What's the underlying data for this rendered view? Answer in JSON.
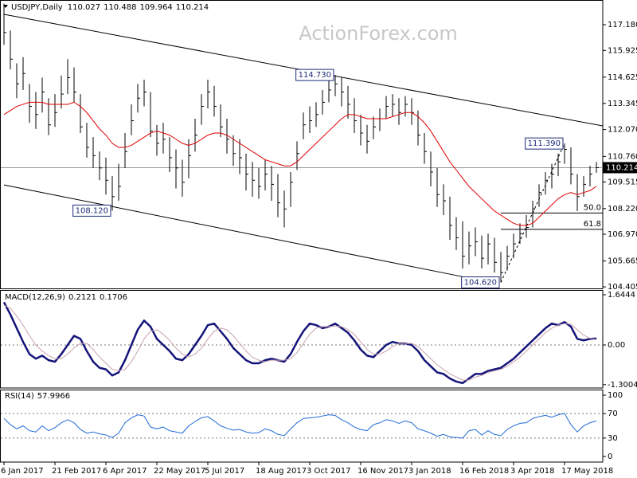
{
  "chart_data": [
    {
      "type": "ohlc",
      "title": "USDJPY,Daily",
      "quote": [
        110.027,
        110.488,
        109.964,
        110.214
      ],
      "watermark": "ActionForex.com",
      "color": "#000000",
      "categories": [
        "6 Jan 2017",
        null,
        null,
        null,
        null,
        null,
        null,
        null,
        "21 Feb 2017",
        null,
        null,
        null,
        null,
        null,
        null,
        null,
        "6 Apr 2017",
        null,
        null,
        null,
        null,
        null,
        null,
        null,
        "22 May 2017",
        null,
        null,
        null,
        null,
        null,
        null,
        null,
        "5 Jul 2017",
        null,
        null,
        null,
        null,
        null,
        null,
        null,
        "18 Aug 2017",
        null,
        null,
        null,
        null,
        null,
        null,
        null,
        "3 Oct 2017",
        null,
        null,
        null,
        null,
        null,
        null,
        null,
        "16 Nov 2017",
        null,
        null,
        null,
        null,
        null,
        null,
        null,
        "3 Jan 2018",
        null,
        null,
        null,
        null,
        null,
        null,
        null,
        "16 Feb 2018",
        null,
        null,
        null,
        null,
        null,
        null,
        null,
        "3 Apr 2018",
        null,
        null,
        null,
        null,
        null,
        null,
        null,
        "17 May 2018",
        null,
        null,
        null,
        null,
        null
      ],
      "high": [
        118.2,
        116.9,
        115.3,
        115.6,
        114.3,
        113.9,
        114.6,
        113.6,
        113.8,
        114.7,
        115.5,
        115.1,
        113.8,
        112.4,
        111.7,
        111.0,
        110.7,
        109.8,
        110.4,
        111.9,
        113.3,
        114.3,
        114.5,
        113.9,
        112.3,
        112.4,
        111.7,
        111.1,
        110.6,
        111.6,
        112.6,
        113.8,
        114.5,
        114.2,
        113.3,
        112.6,
        111.8,
        111.6,
        110.9,
        110.5,
        110.2,
        110.6,
        110.3,
        109.9,
        109.1,
        110.0,
        111.5,
        112.9,
        113.2,
        113.4,
        114.0,
        114.5,
        114.73,
        114.6,
        114.2,
        113.6,
        112.8,
        112.3,
        112.7,
        113.1,
        113.7,
        113.8,
        113.6,
        113.7,
        113.6,
        113.0,
        111.9,
        111.0,
        110.2,
        109.4,
        108.8,
        107.8,
        107.6,
        107.1,
        107.3,
        106.9,
        107.0,
        106.8,
        106.1,
        106.4,
        107.0,
        107.5,
        107.9,
        108.6,
        109.4,
        110.0,
        110.4,
        110.9,
        111.39,
        111.2,
        109.9,
        109.8,
        110.3,
        110.488
      ],
      "low": [
        116.2,
        115.0,
        113.6,
        114.0,
        112.4,
        112.1,
        112.9,
        111.8,
        112.2,
        113.1,
        113.8,
        113.4,
        111.9,
        110.7,
        110.2,
        109.6,
        108.9,
        108.12,
        108.6,
        110.2,
        111.8,
        112.9,
        113.2,
        111.7,
        110.8,
        110.9,
        110.0,
        109.2,
        108.8,
        109.7,
        111.0,
        112.3,
        113.1,
        112.7,
        111.7,
        110.9,
        110.3,
        109.9,
        109.1,
        108.8,
        108.7,
        109.1,
        108.6,
        107.8,
        107.3,
        108.3,
        110.1,
        111.6,
        111.9,
        112.2,
        112.8,
        113.4,
        113.7,
        113.2,
        112.6,
        111.9,
        111.3,
        110.9,
        111.6,
        112.0,
        112.6,
        112.7,
        112.3,
        112.7,
        112.3,
        111.3,
        110.4,
        109.3,
        108.3,
        107.9,
        106.7,
        106.2,
        105.3,
        105.5,
        105.9,
        105.3,
        105.5,
        105.1,
        104.62,
        105.2,
        105.8,
        106.5,
        106.8,
        107.3,
        108.3,
        108.9,
        109.2,
        109.8,
        110.4,
        109.4,
        108.1,
        108.8,
        109.3,
        109.964
      ],
      "close": [
        116.8,
        115.5,
        114.3,
        114.8,
        113.2,
        112.8,
        113.9,
        112.3,
        112.9,
        113.8,
        114.6,
        113.9,
        112.2,
        111.2,
        110.8,
        110.2,
        109.6,
        108.8,
        109.3,
        111.0,
        112.5,
        113.6,
        113.9,
        112.0,
        111.4,
        111.6,
        110.7,
        110.2,
        109.5,
        110.8,
        111.8,
        113.2,
        113.9,
        113.2,
        112.2,
        111.6,
        110.9,
        110.7,
        109.9,
        109.6,
        109.3,
        109.9,
        109.4,
        108.5,
        108.2,
        109.5,
        110.9,
        112.3,
        112.5,
        112.8,
        113.4,
        114.0,
        114.3,
        113.9,
        113.3,
        112.5,
        111.9,
        111.5,
        112.2,
        112.6,
        113.2,
        113.3,
        112.9,
        113.3,
        112.9,
        111.8,
        111.0,
        110.0,
        108.9,
        108.6,
        107.4,
        106.8,
        105.9,
        106.4,
        106.6,
        105.8,
        106.5,
        105.6,
        105.1,
        105.9,
        106.5,
        107.0,
        107.3,
        108.2,
        109.0,
        109.6,
        109.9,
        110.5,
        111.1,
        109.9,
        108.8,
        109.4,
        109.9,
        110.214
      ],
      "ma": {
        "color": "#e00000",
        "values": [
          112.8,
          113.0,
          113.2,
          113.3,
          113.4,
          113.4,
          113.4,
          113.3,
          113.3,
          113.3,
          113.3,
          113.4,
          113.2,
          112.9,
          112.5,
          112.1,
          111.8,
          111.4,
          111.2,
          111.2,
          111.3,
          111.5,
          111.7,
          111.9,
          112.0,
          111.9,
          111.8,
          111.6,
          111.4,
          111.3,
          111.4,
          111.6,
          111.8,
          111.9,
          111.9,
          111.8,
          111.6,
          111.4,
          111.2,
          111.0,
          110.8,
          110.6,
          110.5,
          110.4,
          110.3,
          110.3,
          110.5,
          110.8,
          111.1,
          111.4,
          111.7,
          112.0,
          112.3,
          112.6,
          112.8,
          112.8,
          112.7,
          112.6,
          112.6,
          112.6,
          112.6,
          112.7,
          112.8,
          112.9,
          112.9,
          112.7,
          112.4,
          112.0,
          111.5,
          111.0,
          110.5,
          110.1,
          109.7,
          109.3,
          109.0,
          108.7,
          108.4,
          108.1,
          107.9,
          107.7,
          107.5,
          107.4,
          107.4,
          107.5,
          107.8,
          108.1,
          108.4,
          108.7,
          108.9,
          109.0,
          108.9,
          109.0,
          109.1,
          109.3
        ]
      },
      "ylim": [
        104.33,
        118.19
      ],
      "yticks": [
        {
          "value": 117.18,
          "label": "117.180"
        },
        115.925,
        114.625,
        113.345,
        {
          "value": 112.07,
          "label": "112.070"
        },
        {
          "value": 110.76,
          "label": "110.760"
        },
        109.515,
        {
          "value": 108.22,
          "label": "108.220"
        },
        {
          "value": 106.97,
          "label": "106.970"
        },
        105.665,
        104.405
      ],
      "grid": false,
      "annotations": [
        {
          "value": 114.73,
          "label": "114.730",
          "bar": 52
        },
        {
          "value": 111.39,
          "label": "111.390",
          "bar": 88
        },
        {
          "value": 108.12,
          "label": "108.120",
          "bar": 17
        },
        {
          "value": 104.62,
          "label": "104.620",
          "bar": 78
        }
      ],
      "trendlines": [
        {
          "bars": [
            0,
            94
          ],
          "values": [
            117.685,
            112.248
          ],
          "style": "solid"
        },
        {
          "bars": [
            0,
            72
          ],
          "values": [
            109.374,
            104.9
          ],
          "style": "solid"
        },
        {
          "bars": [
            78,
            88
          ],
          "values": [
            104.62,
            111.39
          ],
          "style": "dashed"
        }
      ],
      "fib_levels": {
        "bars": [
          78,
          94
        ],
        "levels": [
          {
            "value": 108.005,
            "label": "50.0"
          },
          {
            "value": 107.206,
            "label": "61.8"
          }
        ]
      }
    },
    {
      "type": "line",
      "title": "MACD(12,26,9)",
      "ylim": [
        -1.41,
        1.775
      ],
      "yticks": [
        1.6444,
        {
          "value": 0,
          "label": "0.00"
        },
        -1.3004
      ],
      "grid": "dotted",
      "series": [
        {
          "color": "#14147a",
          "line_width": 2.5,
          "values": [
            1.4,
            1.0,
            0.55,
            0.1,
            -0.3,
            -0.45,
            -0.35,
            -0.5,
            -0.55,
            -0.3,
            0.0,
            0.3,
            0.2,
            -0.2,
            -0.55,
            -0.75,
            -0.8,
            -1.0,
            -0.9,
            -0.5,
            0.0,
            0.5,
            0.8,
            0.6,
            0.2,
            0.0,
            -0.2,
            -0.45,
            -0.5,
            -0.3,
            0.0,
            0.3,
            0.65,
            0.7,
            0.45,
            0.2,
            -0.1,
            -0.3,
            -0.5,
            -0.6,
            -0.6,
            -0.5,
            -0.45,
            -0.5,
            -0.55,
            -0.3,
            0.1,
            0.45,
            0.7,
            0.65,
            0.55,
            0.6,
            0.7,
            0.55,
            0.4,
            0.15,
            -0.15,
            -0.35,
            -0.4,
            -0.2,
            0.0,
            0.1,
            0.05,
            0.05,
            0.0,
            -0.2,
            -0.5,
            -0.7,
            -0.9,
            -0.95,
            -1.1,
            -1.2,
            -1.25,
            -1.1,
            -0.95,
            -0.95,
            -0.85,
            -0.8,
            -0.75,
            -0.6,
            -0.45,
            -0.25,
            -0.05,
            0.15,
            0.35,
            0.55,
            0.7,
            0.65,
            0.75,
            0.6,
            0.2,
            0.15,
            0.2,
            0.2121
          ]
        },
        {
          "color": "#c8a2ac",
          "line_width": 1,
          "values": [
            1.3,
            1.2,
            0.95,
            0.65,
            0.3,
            0.0,
            -0.2,
            -0.35,
            -0.45,
            -0.45,
            -0.3,
            -0.1,
            0.05,
            0.05,
            -0.15,
            -0.4,
            -0.6,
            -0.8,
            -0.85,
            -0.8,
            -0.55,
            -0.2,
            0.2,
            0.45,
            0.5,
            0.35,
            0.15,
            -0.1,
            -0.3,
            -0.4,
            -0.3,
            -0.1,
            0.2,
            0.45,
            0.55,
            0.5,
            0.3,
            0.05,
            -0.2,
            -0.4,
            -0.5,
            -0.55,
            -0.5,
            -0.5,
            -0.5,
            -0.45,
            -0.25,
            0.05,
            0.35,
            0.55,
            0.6,
            0.6,
            0.62,
            0.6,
            0.5,
            0.35,
            0.1,
            -0.15,
            -0.3,
            -0.3,
            -0.2,
            -0.05,
            0.05,
            0.05,
            0.05,
            -0.05,
            -0.25,
            -0.45,
            -0.65,
            -0.8,
            -0.95,
            -1.05,
            -1.15,
            -1.15,
            -1.05,
            -1.0,
            -0.9,
            -0.85,
            -0.8,
            -0.7,
            -0.55,
            -0.4,
            -0.2,
            0.0,
            0.2,
            0.4,
            0.55,
            0.65,
            0.7,
            0.68,
            0.5,
            0.32,
            0.22,
            0.1706
          ]
        }
      ]
    },
    {
      "type": "line",
      "title": "RSI(14)",
      "ylim": [
        -9.1,
        107.8
      ],
      "yticks": [
        100,
        70,
        30,
        0
      ],
      "grid": "dotted",
      "series": [
        {
          "color": "#1e6ad6",
          "line_width": 1,
          "values": [
            62,
            52,
            45,
            50,
            42,
            40,
            50,
            42,
            47,
            55,
            60,
            55,
            44,
            38,
            40,
            37,
            35,
            31,
            38,
            55,
            63,
            68,
            66,
            48,
            45,
            48,
            42,
            40,
            38,
            50,
            57,
            63,
            65,
            58,
            50,
            46,
            43,
            44,
            40,
            38,
            39,
            45,
            42,
            36,
            34,
            45,
            55,
            62,
            63,
            64,
            66,
            68,
            67,
            60,
            55,
            48,
            44,
            42,
            52,
            55,
            60,
            58,
            54,
            58,
            55,
            45,
            42,
            38,
            33,
            36,
            32,
            31,
            30,
            42,
            44,
            35,
            42,
            36,
            34,
            44,
            50,
            54,
            55,
            62,
            65,
            67,
            64,
            68,
            70,
            52,
            40,
            50,
            55,
            57.9966
          ]
        }
      ]
    }
  ]
}
